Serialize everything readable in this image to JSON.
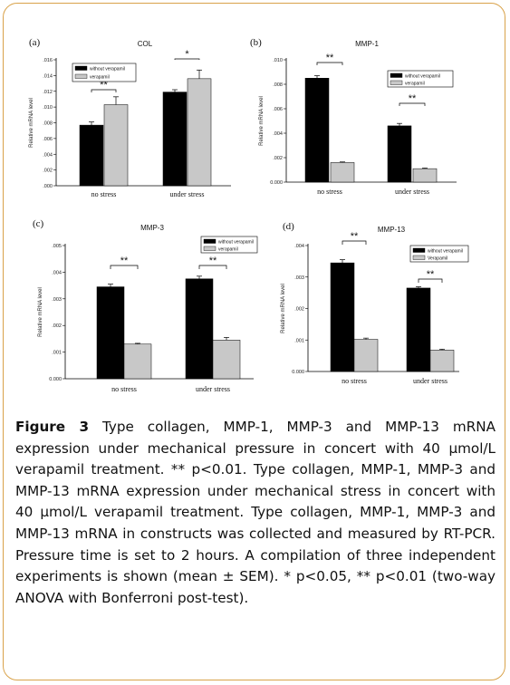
{
  "colors": {
    "border": "#d9a24a",
    "without": "#000000",
    "verapamil": "#c8c8c8"
  },
  "chart_data": [
    {
      "type": "bar",
      "panel": "(a)",
      "title": "COL",
      "ylabel": "Relative mRNA level",
      "ylim": [
        0,
        0.016
      ],
      "ticks": [
        ".000",
        ".002",
        ".004",
        ".006",
        ".008",
        ".010",
        ".012",
        ".014",
        ".016"
      ],
      "categories": [
        "no stress",
        "under stress"
      ],
      "legend": [
        "without verapamil",
        "verapamil"
      ],
      "legend_position": "top-left",
      "series": [
        {
          "name": "without verapamil",
          "values": [
            0.0077,
            0.0119
          ],
          "errors": [
            0.0004,
            0.0003
          ]
        },
        {
          "name": "verapamil",
          "values": [
            0.0103,
            0.0136
          ],
          "errors": [
            0.001,
            0.0011
          ]
        }
      ],
      "sig": [
        "**",
        "*"
      ]
    },
    {
      "type": "bar",
      "panel": "(b)",
      "title": "MMP-1",
      "ylabel": "Relative mRNA level",
      "ylim": [
        0,
        0.01
      ],
      "ticks": [
        "0.000",
        ".002",
        ".004",
        ".006",
        ".008",
        ".010"
      ],
      "categories": [
        "no stress",
        "under stress"
      ],
      "legend": [
        "without verapamil",
        "verapamil"
      ],
      "legend_position": "top-right",
      "series": [
        {
          "name": "without verapamil",
          "values": [
            0.0085,
            0.0046
          ],
          "errors": [
            0.0002,
            0.0002
          ]
        },
        {
          "name": "verapamil",
          "values": [
            0.0016,
            0.0011
          ],
          "errors": [
            5e-05,
            5e-05
          ]
        }
      ],
      "sig": [
        "**",
        "**"
      ]
    },
    {
      "type": "bar",
      "panel": "(c)",
      "title": "MMP-3",
      "ylabel": "Relative mRNA level",
      "ylim": [
        0,
        0.005
      ],
      "ticks": [
        "0.000",
        ".001",
        ".002",
        ".003",
        ".004",
        ".005"
      ],
      "categories": [
        "no stress",
        "under stress"
      ],
      "legend": [
        "without verapamil",
        "verapamil"
      ],
      "legend_position": "top-right",
      "series": [
        {
          "name": "without verapamil",
          "values": [
            0.00345,
            0.00375
          ],
          "errors": [
            0.0001,
            0.0001
          ]
        },
        {
          "name": "verapamil",
          "values": [
            0.0013,
            0.00145
          ],
          "errors": [
            3e-05,
            0.0001
          ]
        }
      ],
      "sig": [
        "**",
        "**"
      ]
    },
    {
      "type": "bar",
      "panel": "(d)",
      "title": "MMP-13",
      "ylabel": "Relative mRNA level",
      "ylim": [
        0,
        0.004
      ],
      "ticks": [
        "0.000",
        ".001",
        ".002",
        ".003",
        ".004"
      ],
      "categories": [
        "no stress",
        "under stress"
      ],
      "legend": [
        "without verapamil",
        "Verapamil"
      ],
      "legend_position": "top-right",
      "series": [
        {
          "name": "without verapamil",
          "values": [
            0.00345,
            0.00265
          ],
          "errors": [
            0.0001,
            4e-05
          ]
        },
        {
          "name": "Verapamil",
          "values": [
            0.00102,
            0.00068
          ],
          "errors": [
            4e-05,
            3e-05
          ]
        }
      ],
      "sig": [
        "**",
        "**"
      ]
    }
  ],
  "caption": {
    "label": "Figure 3",
    "text": " Type collagen, MMP-1, MMP-3 and MMP-13 mRNA expression under mechanical pressure in concert with 40 μmol/L verapamil treatment. ** p<0.01. Type collagen, MMP-1, MMP-3 and MMP-13 mRNA expression under mechanical stress in concert with 40 μmol/L verapamil treatment. Type collagen, MMP-1, MMP-3 and MMP-13 mRNA in constructs was collected and measured by RT-PCR. Pressure time is set to 2 hours. A compilation of three independent experiments is shown (mean ± SEM). * p<0.05, ** p<0.01 (two-way ANOVA with Bonferroni post-test)."
  }
}
